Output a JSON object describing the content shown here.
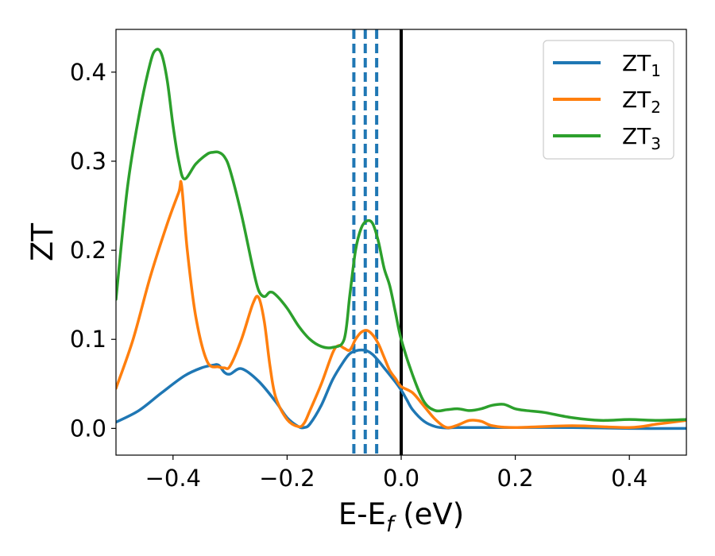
{
  "chart_data": {
    "type": "line",
    "title": "",
    "xlabel": {
      "base": "E-E",
      "sub": "f",
      "unit": " (eV)"
    },
    "ylabel": "ZT",
    "xlim": [
      -0.5,
      0.5
    ],
    "ylim": [
      -0.03,
      0.448
    ],
    "xticks": [
      -0.4,
      -0.2,
      0.0,
      0.2,
      0.4
    ],
    "xtick_labels": [
      "−0.4",
      "−0.2",
      "0.0",
      "0.2",
      "0.4"
    ],
    "yticks": [
      0.0,
      0.1,
      0.2,
      0.3,
      0.4
    ],
    "ytick_labels": [
      "0.0",
      "0.1",
      "0.2",
      "0.3",
      "0.4"
    ],
    "grid": false,
    "legend_position": "top-right",
    "series": [
      {
        "name": "ZT",
        "sub": "1",
        "color": "#1f77b4",
        "x": [
          -0.5,
          -0.46,
          -0.42,
          -0.38,
          -0.35,
          -0.33,
          -0.32,
          -0.31,
          -0.3,
          -0.28,
          -0.25,
          -0.22,
          -0.2,
          -0.18,
          -0.17,
          -0.16,
          -0.14,
          -0.12,
          -0.1,
          -0.09,
          -0.08,
          -0.07,
          -0.06,
          -0.05,
          -0.04,
          -0.03,
          -0.02,
          -0.01,
          0.0,
          0.01,
          0.02,
          0.04,
          0.06,
          0.08,
          0.1,
          0.2,
          0.3,
          0.4,
          0.5
        ],
        "values": [
          0.007,
          0.02,
          0.04,
          0.059,
          0.068,
          0.071,
          0.071,
          0.063,
          0.061,
          0.067,
          0.053,
          0.03,
          0.012,
          0.002,
          0.001,
          0.005,
          0.026,
          0.055,
          0.076,
          0.084,
          0.087,
          0.088,
          0.087,
          0.083,
          0.076,
          0.068,
          0.06,
          0.052,
          0.043,
          0.032,
          0.021,
          0.008,
          0.002,
          0.0005,
          0.001,
          0.001,
          0.001,
          0.0,
          0.0
        ]
      },
      {
        "name": "ZT",
        "sub": "2",
        "color": "#ff7f0e",
        "x": [
          -0.5,
          -0.47,
          -0.44,
          -0.41,
          -0.39,
          -0.385,
          -0.375,
          -0.36,
          -0.34,
          -0.32,
          -0.31,
          -0.3,
          -0.28,
          -0.26,
          -0.25,
          -0.24,
          -0.23,
          -0.22,
          -0.2,
          -0.18,
          -0.17,
          -0.16,
          -0.14,
          -0.12,
          -0.11,
          -0.1,
          -0.09,
          -0.08,
          -0.07,
          -0.06,
          -0.05,
          -0.04,
          -0.03,
          -0.02,
          -0.01,
          0.0,
          0.02,
          0.04,
          0.06,
          0.08,
          0.1,
          0.12,
          0.14,
          0.16,
          0.2,
          0.3,
          0.4,
          0.45,
          0.5
        ],
        "values": [
          0.045,
          0.1,
          0.17,
          0.23,
          0.265,
          0.273,
          0.2,
          0.125,
          0.075,
          0.069,
          0.068,
          0.07,
          0.1,
          0.14,
          0.147,
          0.12,
          0.07,
          0.035,
          0.01,
          0.002,
          0.006,
          0.02,
          0.05,
          0.085,
          0.093,
          0.09,
          0.088,
          0.1,
          0.108,
          0.11,
          0.105,
          0.095,
          0.08,
          0.065,
          0.056,
          0.047,
          0.04,
          0.025,
          0.01,
          0.001,
          0.004,
          0.009,
          0.008,
          0.003,
          0.001,
          0.003,
          0.001,
          0.005,
          0.009
        ]
      },
      {
        "name": "ZT",
        "sub": "3",
        "color": "#2ca02c",
        "x": [
          -0.5,
          -0.48,
          -0.46,
          -0.44,
          -0.43,
          -0.42,
          -0.41,
          -0.4,
          -0.39,
          -0.38,
          -0.36,
          -0.34,
          -0.33,
          -0.32,
          -0.31,
          -0.3,
          -0.28,
          -0.26,
          -0.25,
          -0.24,
          -0.23,
          -0.22,
          -0.2,
          -0.18,
          -0.16,
          -0.14,
          -0.12,
          -0.1,
          -0.09,
          -0.08,
          -0.07,
          -0.06,
          -0.05,
          -0.04,
          -0.03,
          -0.02,
          -0.01,
          0.0,
          0.02,
          0.04,
          0.06,
          0.08,
          0.1,
          0.12,
          0.14,
          0.16,
          0.18,
          0.2,
          0.22,
          0.25,
          0.3,
          0.35,
          0.4,
          0.45,
          0.5
        ],
        "values": [
          0.145,
          0.27,
          0.35,
          0.41,
          0.425,
          0.42,
          0.39,
          0.34,
          0.3,
          0.28,
          0.297,
          0.308,
          0.31,
          0.31,
          0.305,
          0.29,
          0.24,
          0.18,
          0.155,
          0.148,
          0.153,
          0.15,
          0.135,
          0.115,
          0.1,
          0.092,
          0.091,
          0.1,
          0.15,
          0.2,
          0.225,
          0.233,
          0.23,
          0.21,
          0.18,
          0.16,
          0.13,
          0.1,
          0.06,
          0.03,
          0.02,
          0.021,
          0.022,
          0.02,
          0.022,
          0.026,
          0.027,
          0.022,
          0.02,
          0.018,
          0.012,
          0.009,
          0.01,
          0.009,
          0.01
        ]
      }
    ],
    "vlines": [
      {
        "x": 0.0,
        "style": "solid",
        "color": "#000000"
      },
      {
        "x": -0.083,
        "style": "dashed",
        "color": "#1f77b4"
      },
      {
        "x": -0.063,
        "style": "dashed",
        "color": "#1f77b4"
      },
      {
        "x": -0.043,
        "style": "dashed",
        "color": "#1f77b4"
      }
    ]
  }
}
